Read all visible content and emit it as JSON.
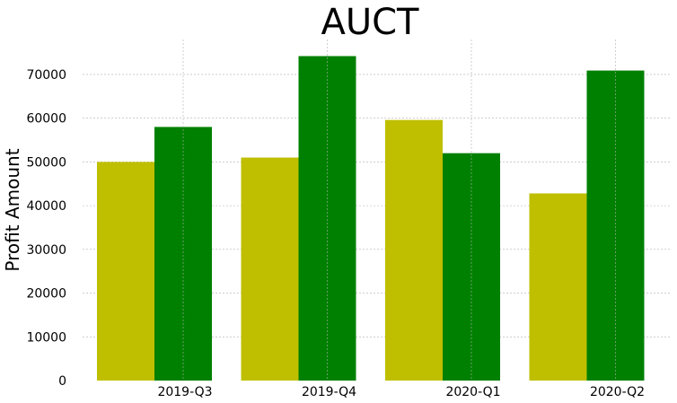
{
  "chart_data": {
    "type": "bar",
    "title": "AUCT",
    "xlabel": "",
    "ylabel": "Profit Amount",
    "categories": [
      "2019-Q3",
      "2019-Q4",
      "2020-Q1",
      "2020-Q2"
    ],
    "series": [
      {
        "color": "#bfbf00",
        "values": [
          50000,
          51000,
          59600,
          42800
        ]
      },
      {
        "color": "#008000",
        "values": [
          58000,
          74200,
          52000,
          70900
        ]
      }
    ],
    "yticks": [
      0,
      10000,
      20000,
      30000,
      40000,
      50000,
      60000,
      70000
    ],
    "ylim": [
      0,
      78000
    ],
    "grid": true,
    "legend": "none"
  }
}
